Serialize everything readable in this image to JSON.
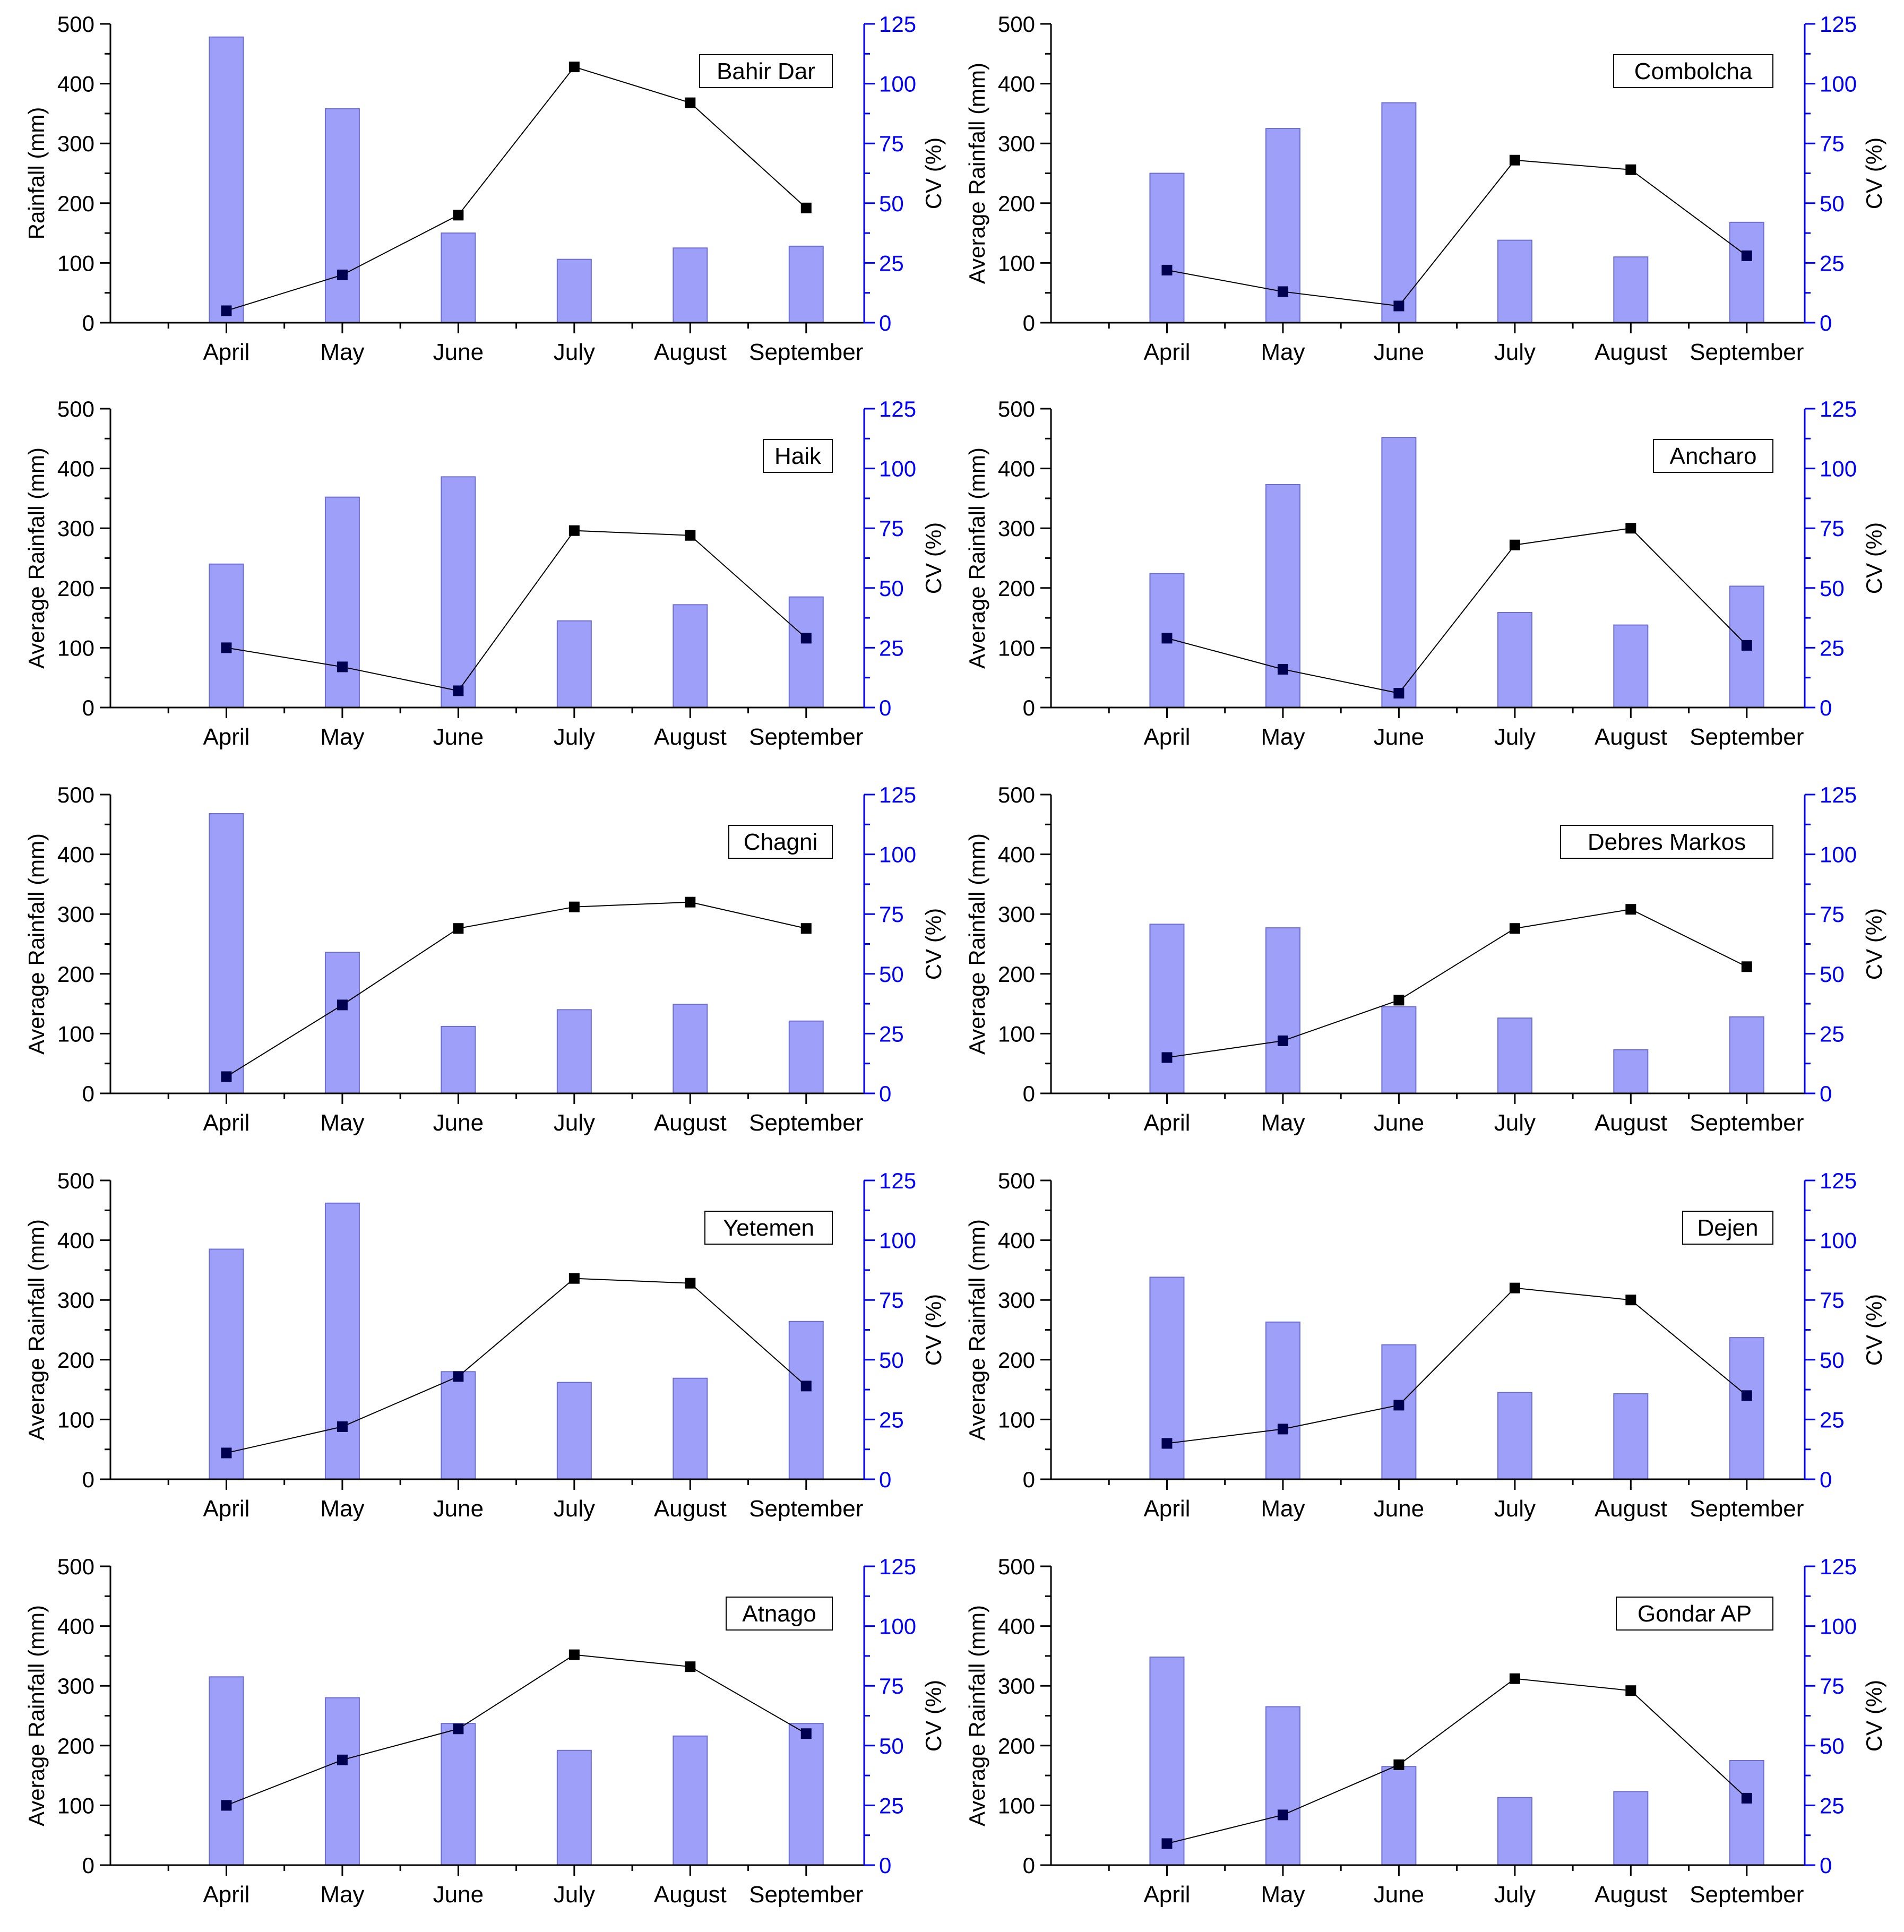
{
  "figure": {
    "colors": {
      "bar_fill": "#9d9ff8",
      "bar_edge": "#6d6fd0",
      "line": "#000000",
      "marker_dark": "#000000",
      "marker_navy": "#000050",
      "right_axis": "#0000ff",
      "left_axis": "#000000"
    }
  },
  "chart_data": [
    {
      "type": "bar+line",
      "title": "Bahir Dar",
      "ylabel": "Rainfall (mm)",
      "y2label": "CV (%)",
      "categories": [
        "April",
        "May",
        "June",
        "July",
        "August",
        "September"
      ],
      "ylim": [
        0,
        500
      ],
      "y2lim": [
        0,
        125
      ],
      "yticks": [
        "0",
        "100",
        "200",
        "300",
        "400",
        "500"
      ],
      "y2ticks": [
        "0",
        "25",
        "50",
        "75",
        "100",
        "125"
      ],
      "series": [
        {
          "name": "Rainfall",
          "kind": "bar",
          "axis": "left",
          "values": [
            478,
            358,
            150,
            106,
            125,
            128
          ]
        },
        {
          "name": "CV",
          "kind": "line",
          "axis": "right",
          "values": [
            5,
            20,
            45,
            107,
            92,
            48
          ]
        }
      ]
    },
    {
      "type": "bar+line",
      "title": "Combolcha",
      "ylabel": "Average Rainfall (mm)",
      "y2label": "CV (%)",
      "categories": [
        "April",
        "May",
        "June",
        "July",
        "August",
        "September"
      ],
      "ylim": [
        0,
        500
      ],
      "y2lim": [
        0,
        125
      ],
      "yticks": [
        "0",
        "100",
        "200",
        "300",
        "400",
        "500"
      ],
      "y2ticks": [
        "0",
        "25",
        "50",
        "75",
        "100",
        "125"
      ],
      "series": [
        {
          "name": "Rainfall",
          "kind": "bar",
          "axis": "left",
          "values": [
            250,
            325,
            368,
            138,
            110,
            168
          ]
        },
        {
          "name": "CV",
          "kind": "line",
          "axis": "right",
          "values": [
            22,
            13,
            7,
            68,
            64,
            28
          ]
        }
      ]
    },
    {
      "type": "bar+line",
      "title": "Haik",
      "ylabel": "Average Rainfall (mm)",
      "y2label": "CV (%)",
      "categories": [
        "April",
        "May",
        "June",
        "July",
        "August",
        "September"
      ],
      "ylim": [
        0,
        500
      ],
      "y2lim": [
        0,
        125
      ],
      "yticks": [
        "0",
        "100",
        "200",
        "300",
        "400",
        "500"
      ],
      "y2ticks": [
        "0",
        "25",
        "50",
        "75",
        "100",
        "125"
      ],
      "series": [
        {
          "name": "Rainfall",
          "kind": "bar",
          "axis": "left",
          "values": [
            240,
            352,
            386,
            145,
            172,
            185
          ]
        },
        {
          "name": "CV",
          "kind": "line",
          "axis": "right",
          "values": [
            25,
            17,
            7,
            74,
            72,
            29
          ]
        }
      ]
    },
    {
      "type": "bar+line",
      "title": "Ancharo",
      "ylabel": "Average Rainfall (mm)",
      "y2label": "CV (%)",
      "categories": [
        "April",
        "May",
        "June",
        "July",
        "August",
        "September"
      ],
      "ylim": [
        0,
        500
      ],
      "y2lim": [
        0,
        125
      ],
      "yticks": [
        "0",
        "100",
        "200",
        "300",
        "400",
        "500"
      ],
      "y2ticks": [
        "0",
        "25",
        "50",
        "75",
        "100",
        "125"
      ],
      "series": [
        {
          "name": "Rainfall",
          "kind": "bar",
          "axis": "left",
          "values": [
            224,
            373,
            452,
            159,
            138,
            203
          ]
        },
        {
          "name": "CV",
          "kind": "line",
          "axis": "right",
          "values": [
            29,
            16,
            6,
            68,
            75,
            26
          ]
        }
      ]
    },
    {
      "type": "bar+line",
      "title": "Chagni",
      "ylabel": "Average Rainfall (mm)",
      "y2label": "CV (%)",
      "categories": [
        "April",
        "May",
        "June",
        "July",
        "August",
        "September"
      ],
      "ylim": [
        0,
        500
      ],
      "y2lim": [
        0,
        125
      ],
      "yticks": [
        "0",
        "100",
        "200",
        "300",
        "400",
        "500"
      ],
      "y2ticks": [
        "0",
        "25",
        "50",
        "75",
        "100",
        "125"
      ],
      "series": [
        {
          "name": "Rainfall",
          "kind": "bar",
          "axis": "left",
          "values": [
            468,
            236,
            112,
            140,
            149,
            121
          ]
        },
        {
          "name": "CV",
          "kind": "line",
          "axis": "right",
          "values": [
            7,
            37,
            69,
            78,
            80,
            69
          ]
        }
      ]
    },
    {
      "type": "bar+line",
      "title": "Debres Markos",
      "ylabel": "Average Rainfall (mm)",
      "y2label": "CV (%)",
      "categories": [
        "April",
        "May",
        "June",
        "July",
        "August",
        "September"
      ],
      "ylim": [
        0,
        500
      ],
      "y2lim": [
        0,
        125
      ],
      "yticks": [
        "0",
        "100",
        "200",
        "300",
        "400",
        "500"
      ],
      "y2ticks": [
        "0",
        "25",
        "50",
        "75",
        "100",
        "125"
      ],
      "series": [
        {
          "name": "Rainfall",
          "kind": "bar",
          "axis": "left",
          "values": [
            283,
            277,
            145,
            126,
            73,
            128
          ]
        },
        {
          "name": "CV",
          "kind": "line",
          "axis": "right",
          "values": [
            15,
            22,
            39,
            69,
            77,
            53
          ]
        }
      ]
    },
    {
      "type": "bar+line",
      "title": "Yetemen",
      "ylabel": "Average Rainfall (mm)",
      "y2label": "CV (%)",
      "categories": [
        "April",
        "May",
        "June",
        "July",
        "August",
        "September"
      ],
      "ylim": [
        0,
        500
      ],
      "y2lim": [
        0,
        125
      ],
      "yticks": [
        "0",
        "100",
        "200",
        "300",
        "400",
        "500"
      ],
      "y2ticks": [
        "0",
        "25",
        "50",
        "75",
        "100",
        "125"
      ],
      "series": [
        {
          "name": "Rainfall",
          "kind": "bar",
          "axis": "left",
          "values": [
            385,
            462,
            180,
            162,
            169,
            264
          ]
        },
        {
          "name": "CV",
          "kind": "line",
          "axis": "right",
          "values": [
            11,
            22,
            43,
            84,
            82,
            39
          ]
        }
      ]
    },
    {
      "type": "bar+line",
      "title": "Dejen",
      "ylabel": "Average Rainfall (mm)",
      "y2label": "CV (%)",
      "categories": [
        "April",
        "May",
        "June",
        "July",
        "August",
        "September"
      ],
      "ylim": [
        0,
        500
      ],
      "y2lim": [
        0,
        125
      ],
      "yticks": [
        "0",
        "100",
        "200",
        "300",
        "400",
        "500"
      ],
      "y2ticks": [
        "0",
        "25",
        "50",
        "75",
        "100",
        "125"
      ],
      "series": [
        {
          "name": "Rainfall",
          "kind": "bar",
          "axis": "left",
          "values": [
            338,
            263,
            225,
            145,
            143,
            237
          ]
        },
        {
          "name": "CV",
          "kind": "line",
          "axis": "right",
          "values": [
            15,
            21,
            31,
            80,
            75,
            35
          ]
        }
      ]
    },
    {
      "type": "bar+line",
      "title": "Atnago",
      "ylabel": "Average Rainfall (mm)",
      "y2label": "CV (%)",
      "categories": [
        "April",
        "May",
        "June",
        "July",
        "August",
        "September"
      ],
      "ylim": [
        0,
        500
      ],
      "y2lim": [
        0,
        125
      ],
      "yticks": [
        "0",
        "100",
        "200",
        "300",
        "400",
        "500"
      ],
      "y2ticks": [
        "0",
        "25",
        "50",
        "75",
        "100",
        "125"
      ],
      "series": [
        {
          "name": "Rainfall",
          "kind": "bar",
          "axis": "left",
          "values": [
            315,
            280,
            237,
            192,
            216,
            237
          ]
        },
        {
          "name": "CV",
          "kind": "line",
          "axis": "right",
          "values": [
            25,
            44,
            57,
            88,
            83,
            55
          ]
        }
      ]
    },
    {
      "type": "bar+line",
      "title": "Gondar AP",
      "ylabel": "Average Rainfall (mm)",
      "y2label": "CV (%)",
      "categories": [
        "April",
        "May",
        "June",
        "July",
        "August",
        "September"
      ],
      "ylim": [
        0,
        500
      ],
      "y2lim": [
        0,
        125
      ],
      "yticks": [
        "0",
        "100",
        "200",
        "300",
        "400",
        "500"
      ],
      "y2ticks": [
        "0",
        "25",
        "50",
        "75",
        "100",
        "125"
      ],
      "series": [
        {
          "name": "Rainfall",
          "kind": "bar",
          "axis": "left",
          "values": [
            348,
            265,
            165,
            113,
            123,
            175
          ]
        },
        {
          "name": "CV",
          "kind": "line",
          "axis": "right",
          "values": [
            9,
            21,
            42,
            78,
            73,
            28
          ]
        }
      ]
    }
  ]
}
